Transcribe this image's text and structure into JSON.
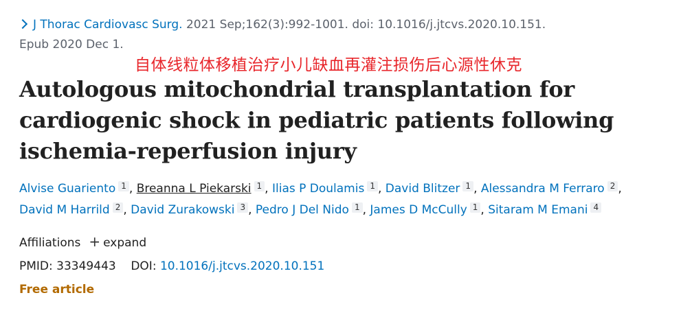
{
  "citation": {
    "journal": "J Thorac Cardiovasc Surg.",
    "details": " 2021 Sep;162(3):992-1001. doi: 10.1016/j.jtcvs.2020.10.151.",
    "epub": "Epub 2020 Dec 1."
  },
  "annotation": "自体线粒体移植治疗小儿缺血再灌注损伤后心源性休克",
  "title": "Autologous mitochondrial transplantation for cardiogenic shock in pediatric patients following ischemia-reperfusion injury",
  "authors": [
    {
      "name": "Alvise Guariento",
      "aff": "1"
    },
    {
      "name": "Breanna L Piekarski",
      "aff": "1"
    },
    {
      "name": "Ilias P Doulamis",
      "aff": "1"
    },
    {
      "name": "David Blitzer",
      "aff": "1"
    },
    {
      "name": "Alessandra M Ferraro",
      "aff": "2"
    },
    {
      "name": "David M Harrild",
      "aff": "2"
    },
    {
      "name": "David Zurakowski",
      "aff": "3"
    },
    {
      "name": "Pedro J Del Nido",
      "aff": "1"
    },
    {
      "name": "James D McCully",
      "aff": "1"
    },
    {
      "name": "Sitaram M Emani",
      "aff": "4"
    }
  ],
  "affiliations": {
    "label": "Affiliations",
    "expand": "expand",
    "plus": "+"
  },
  "ids": {
    "pmid_label": "PMID:",
    "pmid": "33349443",
    "doi_label": "DOI:",
    "doi": "10.1016/j.jtcvs.2020.10.151"
  },
  "free_article": "Free article",
  "colors": {
    "link": "#0071bc",
    "annotation": "#e8262b",
    "free": "#b26a00"
  }
}
